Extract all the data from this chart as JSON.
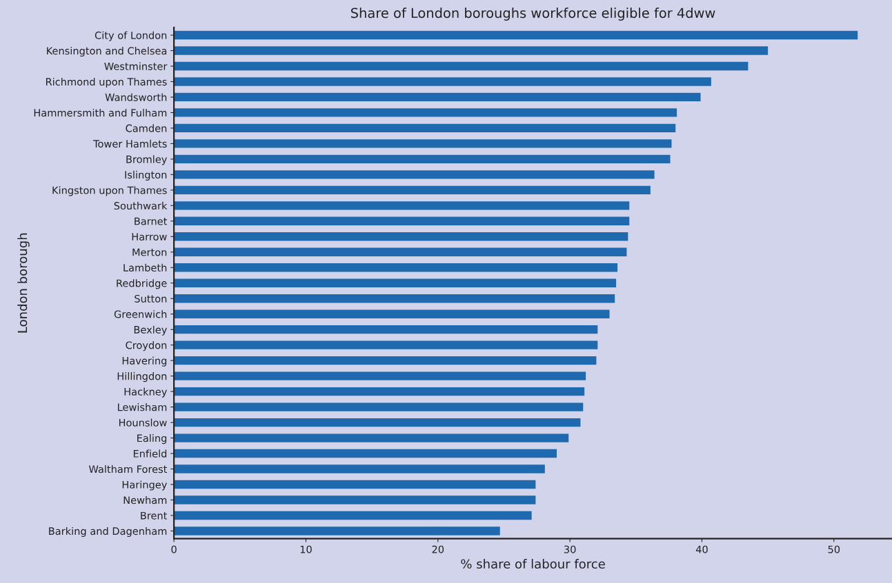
{
  "chart_data": {
    "type": "bar",
    "orientation": "horizontal",
    "title": "Share of London boroughs workforce eligible for 4dww",
    "xlabel": "% share of labour force",
    "ylabel": "London borough",
    "categories": [
      "City of London",
      "Kensington and Chelsea",
      "Westminster",
      "Richmond upon Thames",
      "Wandsworth",
      "Hammersmith and Fulham",
      "Camden",
      "Tower Hamlets",
      "Bromley",
      "Islington",
      "Kingston upon Thames",
      "Southwark",
      "Barnet",
      "Harrow",
      "Merton",
      "Lambeth",
      "Redbridge",
      "Sutton",
      "Greenwich",
      "Bexley",
      "Croydon",
      "Havering",
      "Hillingdon",
      "Hackney",
      "Lewisham",
      "Hounslow",
      "Ealing",
      "Enfield",
      "Waltham Forest",
      "Haringey",
      "Newham",
      "Brent",
      "Barking and Dagenham"
    ],
    "values": [
      51.8,
      45.0,
      43.5,
      40.7,
      39.9,
      38.1,
      38.0,
      37.7,
      37.6,
      36.4,
      36.1,
      34.5,
      34.5,
      34.4,
      34.3,
      33.6,
      33.5,
      33.4,
      33.0,
      32.1,
      32.1,
      32.0,
      31.2,
      31.1,
      31.0,
      30.8,
      29.9,
      29.0,
      28.1,
      27.4,
      27.4,
      27.1,
      24.7
    ],
    "color": "#1f69ae",
    "xlim": [
      0,
      54.4
    ],
    "xticks": [
      0,
      10,
      20,
      30,
      40,
      50
    ],
    "grid": false,
    "legend": false
  }
}
